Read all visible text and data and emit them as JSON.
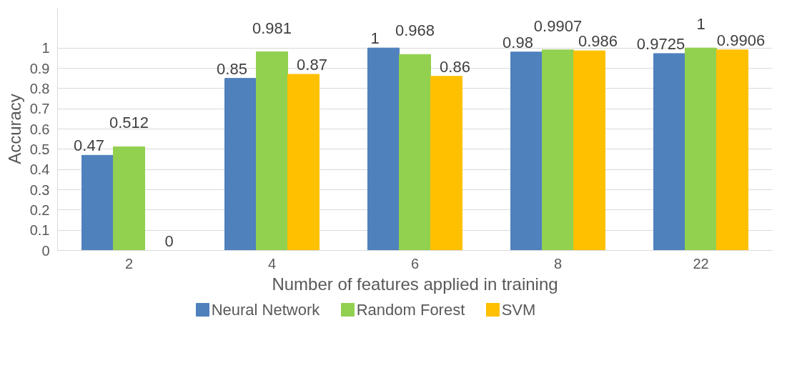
{
  "chart_data": {
    "type": "bar",
    "xlabel": "Number of features applied in training",
    "ylabel": "Accuracy",
    "categories": [
      "2",
      "4",
      "6",
      "8",
      "22"
    ],
    "series": [
      {
        "name": "Neural Network",
        "color": "#4f81bd",
        "values": [
          0.47,
          0.85,
          1,
          0.98,
          0.9725
        ]
      },
      {
        "name": "Random Forest",
        "color": "#92d050",
        "values": [
          0.512,
          0.981,
          0.968,
          0.9907,
          1
        ]
      },
      {
        "name": "SVM",
        "color": "#ffc000",
        "values": [
          0,
          0.87,
          0.86,
          0.986,
          0.9906
        ]
      }
    ],
    "data_labels": true,
    "ylim": [
      0,
      1.2
    ],
    "yticks": [
      0,
      0.1,
      0.2,
      0.3,
      0.4,
      0.5,
      0.6,
      0.7,
      0.8,
      0.9,
      1
    ],
    "grid": "y",
    "legend": "bottom"
  }
}
